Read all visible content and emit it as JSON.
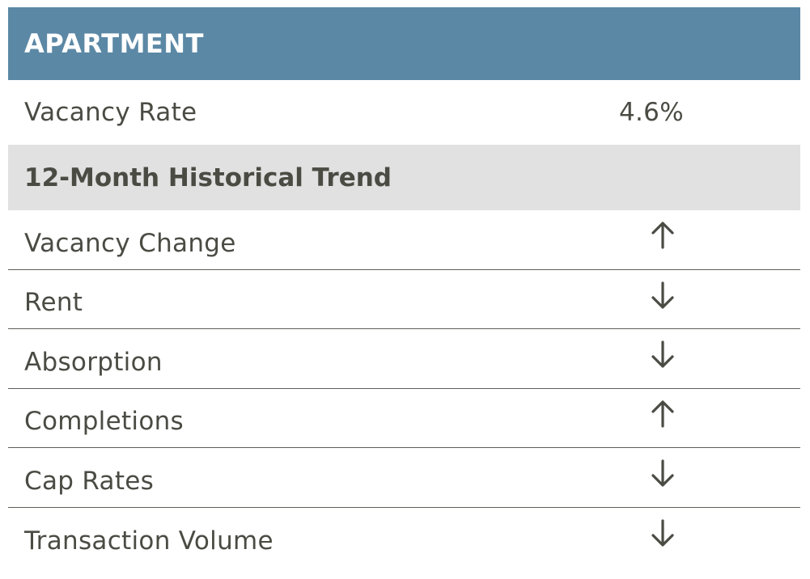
{
  "header": {
    "title": "APARTMENT"
  },
  "vacancy": {
    "label": "Vacancy Rate",
    "value": "4.6%"
  },
  "section": {
    "title": "12-Month Historical Trend"
  },
  "trends": [
    {
      "label": "Vacancy Change",
      "direction": "up",
      "icon": "arrow-up-icon"
    },
    {
      "label": "Rent",
      "direction": "down",
      "icon": "arrow-down-icon"
    },
    {
      "label": "Absorption",
      "direction": "down",
      "icon": "arrow-down-icon"
    },
    {
      "label": "Completions",
      "direction": "up",
      "icon": "arrow-up-icon"
    },
    {
      "label": "Cap Rates",
      "direction": "down",
      "icon": "arrow-down-icon"
    },
    {
      "label": "Transaction Volume",
      "direction": "down",
      "icon": "arrow-down-icon"
    }
  ],
  "colors": {
    "header_bg": "#5b88a5",
    "section_bg": "#e0e1e0",
    "text": "#4a4c44"
  }
}
